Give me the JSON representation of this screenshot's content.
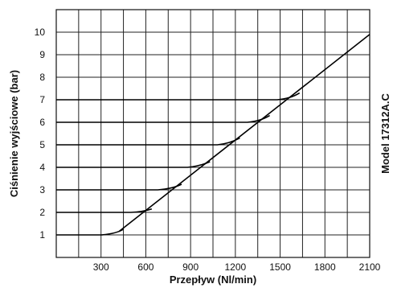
{
  "chart_data": {
    "type": "line",
    "title": "",
    "xlabel": "Przepływ (Nl/min)",
    "ylabel": "Ciśnienie wyjściowe (bar)",
    "side_label": "Model 17312A.C",
    "xlim": [
      0,
      2100
    ],
    "ylim": [
      0,
      11
    ],
    "x_ticks": [
      300,
      600,
      900,
      1200,
      1500,
      1800,
      2100
    ],
    "y_ticks": [
      1,
      2,
      3,
      4,
      5,
      6,
      7,
      8,
      9,
      10
    ],
    "grid": true,
    "limit_line": {
      "points": [
        [
          420,
          1.15
        ],
        [
          2100,
          9.9
        ]
      ]
    },
    "series": [
      {
        "values": [
          [
            0,
            1
          ],
          [
            300,
            1
          ],
          [
            400,
            1.05
          ],
          [
            450,
            1.25
          ]
        ]
      },
      {
        "values": [
          [
            0,
            2
          ],
          [
            500,
            2
          ],
          [
            580,
            2.02
          ],
          [
            640,
            2.15
          ]
        ]
      },
      {
        "values": [
          [
            0,
            3
          ],
          [
            680,
            3
          ],
          [
            780,
            3.05
          ],
          [
            840,
            3.25
          ]
        ]
      },
      {
        "values": [
          [
            0,
            4
          ],
          [
            880,
            4
          ],
          [
            960,
            4.05
          ],
          [
            1030,
            4.25
          ]
        ]
      },
      {
        "values": [
          [
            0,
            5
          ],
          [
            1080,
            5
          ],
          [
            1160,
            5.05
          ],
          [
            1230,
            5.3
          ]
        ]
      },
      {
        "values": [
          [
            0,
            6
          ],
          [
            1280,
            6
          ],
          [
            1370,
            6.05
          ],
          [
            1430,
            6.3
          ]
        ]
      },
      {
        "values": [
          [
            0,
            7
          ],
          [
            1480,
            7
          ],
          [
            1570,
            7.05
          ],
          [
            1630,
            7.3
          ]
        ]
      }
    ]
  }
}
